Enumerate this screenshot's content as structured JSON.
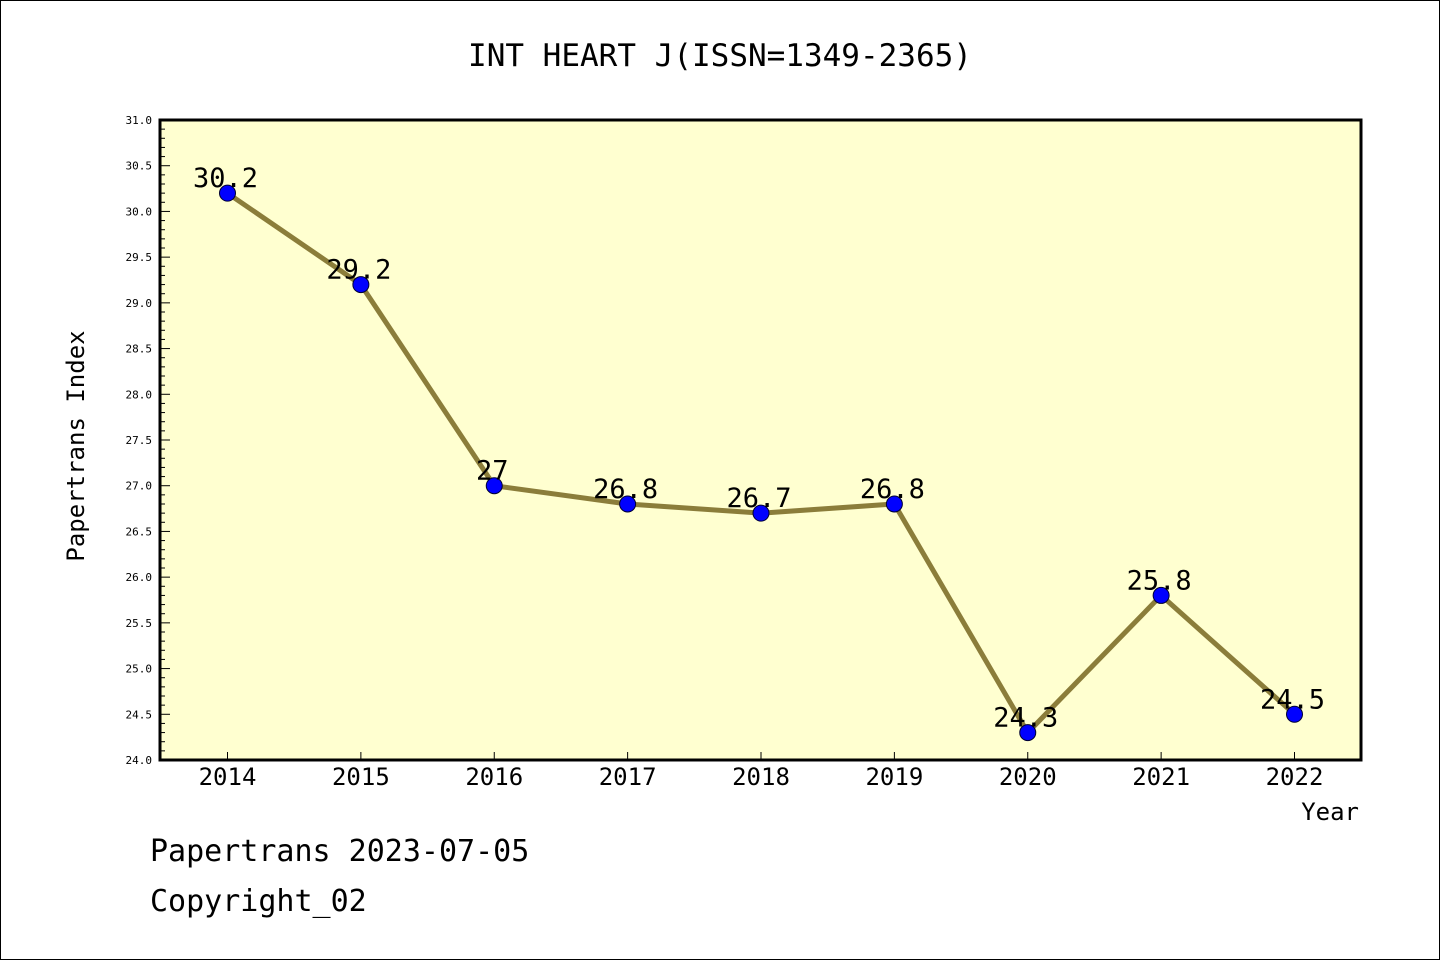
{
  "chart_data": {
    "type": "line",
    "title": "INT HEART J(ISSN=1349-2365)",
    "xlabel": "Year",
    "ylabel": "Papertrans Index",
    "categories": [
      "2014",
      "2015",
      "2016",
      "2017",
      "2018",
      "2019",
      "2020",
      "2021",
      "2022"
    ],
    "values": [
      30.2,
      29.2,
      27,
      26.8,
      26.7,
      26.8,
      24.3,
      25.8,
      24.5
    ],
    "data_labels": [
      "30.2",
      "29.2",
      "27",
      "26.8",
      "26.7",
      "26.8",
      "24.3",
      "25.8",
      "24.5"
    ],
    "ylim": [
      24.0,
      31.0
    ],
    "yticks": [
      "24.0",
      "24.5",
      "25.0",
      "25.5",
      "26.0",
      "26.5",
      "27.0",
      "27.5",
      "28.0",
      "28.5",
      "29.0",
      "29.5",
      "30.0",
      "30.5",
      "31.0"
    ],
    "grid": false,
    "colors": {
      "plot_background": "#ffffd0",
      "line": "#8b7d3a",
      "marker": "#0000ff"
    }
  },
  "footer": {
    "line1": "Papertrans 2023-07-05",
    "line2": "Copyright_02"
  }
}
